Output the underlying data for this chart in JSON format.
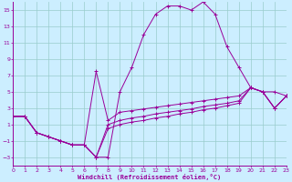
{
  "xlabel": "Windchill (Refroidissement éolien,°C)",
  "xlim": [
    0,
    23
  ],
  "ylim": [
    -4,
    16
  ],
  "xticks": [
    0,
    1,
    2,
    3,
    4,
    5,
    6,
    7,
    8,
    9,
    10,
    11,
    12,
    13,
    14,
    15,
    16,
    17,
    18,
    19,
    20,
    21,
    22,
    23
  ],
  "yticks": [
    -3,
    -1,
    1,
    3,
    5,
    7,
    9,
    11,
    13,
    15
  ],
  "bg_color": "#cceeff",
  "line_color": "#990099",
  "grid_color": "#99cccc",
  "line1_x": [
    0,
    1,
    2,
    3,
    4,
    5,
    6,
    7,
    8,
    9,
    10,
    11,
    12,
    13,
    14,
    15,
    16,
    17,
    18,
    19,
    20,
    21,
    22,
    23
  ],
  "line1_y": [
    2.0,
    2.0,
    0.0,
    -0.5,
    -1.0,
    -1.5,
    -1.5,
    -3.0,
    -3.0,
    5.0,
    8.0,
    12.0,
    14.5,
    15.5,
    15.5,
    15.0,
    16.0,
    14.5,
    10.5,
    8.0,
    5.5,
    5.0,
    5.0,
    4.5
  ],
  "line2_x": [
    0,
    1,
    2,
    3,
    4,
    5,
    6,
    7,
    8,
    9,
    10,
    11,
    12,
    13,
    14,
    15,
    16,
    17,
    18,
    19,
    20,
    21,
    22,
    23
  ],
  "line2_y": [
    2.0,
    2.0,
    0.0,
    -0.5,
    -1.0,
    -1.5,
    -1.5,
    7.5,
    1.5,
    2.5,
    2.7,
    2.9,
    3.1,
    3.3,
    3.5,
    3.7,
    3.9,
    4.1,
    4.3,
    4.5,
    5.5,
    5.0,
    3.0,
    4.5
  ],
  "line3_x": [
    0,
    1,
    2,
    3,
    4,
    5,
    6,
    7,
    8,
    9,
    10,
    11,
    12,
    13,
    14,
    15,
    16,
    17,
    18,
    19,
    20,
    21,
    22,
    23
  ],
  "line3_y": [
    2.0,
    2.0,
    0.0,
    -0.5,
    -1.0,
    -1.5,
    -1.5,
    -3.0,
    1.0,
    1.5,
    1.8,
    2.0,
    2.3,
    2.5,
    2.7,
    2.9,
    3.2,
    3.4,
    3.6,
    3.9,
    5.5,
    5.0,
    3.0,
    4.5
  ],
  "line4_x": [
    0,
    1,
    2,
    3,
    4,
    5,
    6,
    7,
    8,
    9,
    10,
    11,
    12,
    13,
    14,
    15,
    16,
    17,
    18,
    19,
    20,
    21,
    22,
    23
  ],
  "line4_y": [
    2.0,
    2.0,
    0.0,
    -0.5,
    -1.0,
    -1.5,
    -1.5,
    -3.0,
    0.5,
    1.0,
    1.3,
    1.5,
    1.8,
    2.0,
    2.3,
    2.5,
    2.8,
    3.0,
    3.3,
    3.6,
    5.5,
    5.0,
    3.0,
    4.5
  ]
}
